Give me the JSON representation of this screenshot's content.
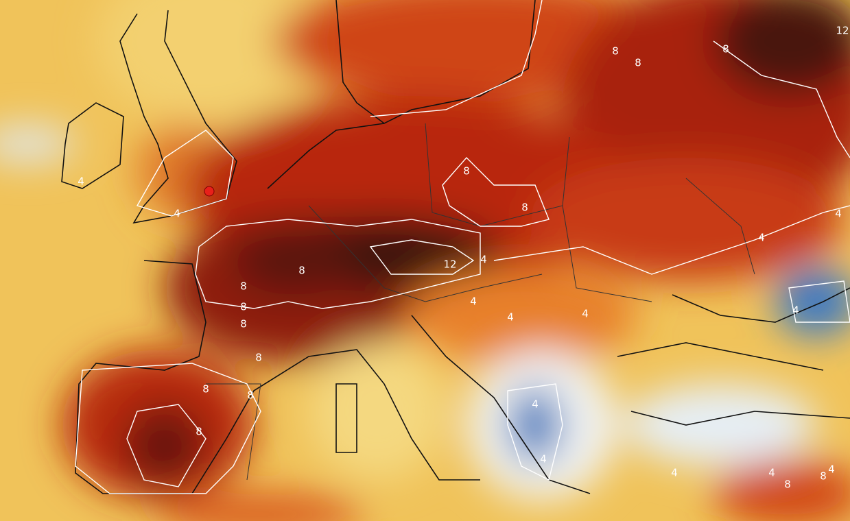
{
  "contour_labels": [
    12,
    8,
    8,
    8,
    8,
    8,
    4,
    4,
    4,
    4,
    8,
    8,
    8,
    8,
    8,
    12,
    4,
    4,
    4,
    4,
    4,
    8,
    8,
    8,
    4,
    4,
    4,
    4,
    8,
    8,
    4
  ]
}
